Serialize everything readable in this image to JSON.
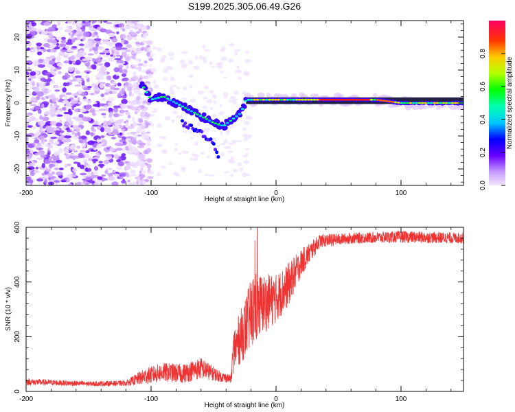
{
  "chart_data": [
    {
      "type": "heatmap",
      "title": "S199.2025.305.06.49.G26",
      "xlabel": "Height of straight line (km)",
      "ylabel": "Frequency (Hz)",
      "xlim": [
        -200,
        150
      ],
      "ylim": [
        -25,
        25
      ],
      "x_ticks": [
        -200,
        -100,
        0,
        100
      ],
      "y_ticks": [
        20,
        10,
        0,
        -10,
        -20
      ],
      "colorbar": {
        "label": "Normalized spectral amplitude",
        "range": [
          0,
          1
        ],
        "ticks": [
          0.0,
          0.2,
          0.4,
          0.6,
          0.8
        ],
        "tick_labels": [
          "0.0",
          "0.2",
          "0.4",
          "0.6",
          "0.8"
        ]
      },
      "features": {
        "noise_region_x": [
          -200,
          -108
        ],
        "tone_track": [
          {
            "x": -108,
            "f": 6
          },
          {
            "x": -100,
            "f": 1
          },
          {
            "x": -90,
            "f": 2
          },
          {
            "x": -80,
            "f": 0
          },
          {
            "x": -70,
            "f": -2
          },
          {
            "x": -60,
            "f": -4
          },
          {
            "x": -50,
            "f": -6
          },
          {
            "x": -42,
            "f": -7
          },
          {
            "x": -35,
            "f": -5
          },
          {
            "x": -28,
            "f": -3
          },
          {
            "x": -24,
            "f": 1
          },
          {
            "x": 0,
            "f": 1
          },
          {
            "x": 40,
            "f": 1
          },
          {
            "x": 80,
            "f": 1
          },
          {
            "x": 100,
            "f": 0
          },
          {
            "x": 150,
            "f": 0
          }
        ],
        "branch_track": [
          {
            "x": -75,
            "f": -6
          },
          {
            "x": -60,
            "f": -9
          },
          {
            "x": -50,
            "f": -12
          },
          {
            "x": -45,
            "f": -18
          }
        ]
      }
    },
    {
      "type": "line",
      "xlabel": "Height of straight line (km)",
      "ylabel": "SNR (10 * v/v)",
      "xlim": [
        -200,
        150
      ],
      "ylim": [
        0,
        600
      ],
      "x_ticks": [
        -200,
        -100,
        0,
        100
      ],
      "y_ticks": [
        0,
        200,
        400,
        600
      ],
      "color": "#ee3333",
      "envelope": [
        {
          "x": -200,
          "mean": 35,
          "amp": 12
        },
        {
          "x": -150,
          "mean": 28,
          "amp": 9
        },
        {
          "x": -120,
          "mean": 30,
          "amp": 10
        },
        {
          "x": -105,
          "mean": 55,
          "amp": 30
        },
        {
          "x": -90,
          "mean": 70,
          "amp": 35
        },
        {
          "x": -75,
          "mean": 65,
          "amp": 35
        },
        {
          "x": -60,
          "mean": 85,
          "amp": 40
        },
        {
          "x": -45,
          "mean": 55,
          "amp": 20
        },
        {
          "x": -36,
          "mean": 45,
          "amp": 15
        },
        {
          "x": -34,
          "mean": 150,
          "amp": 80
        },
        {
          "x": -25,
          "mean": 230,
          "amp": 110
        },
        {
          "x": -18,
          "mean": 300,
          "amp": 140
        },
        {
          "x": -10,
          "mean": 320,
          "amp": 110
        },
        {
          "x": 0,
          "mean": 340,
          "amp": 90
        },
        {
          "x": 10,
          "mean": 390,
          "amp": 80
        },
        {
          "x": 20,
          "mean": 470,
          "amp": 50
        },
        {
          "x": 35,
          "mean": 550,
          "amp": 25
        },
        {
          "x": 60,
          "mean": 560,
          "amp": 20
        },
        {
          "x": 100,
          "mean": 565,
          "amp": 22
        },
        {
          "x": 150,
          "mean": 560,
          "amp": 20
        }
      ]
    }
  ]
}
